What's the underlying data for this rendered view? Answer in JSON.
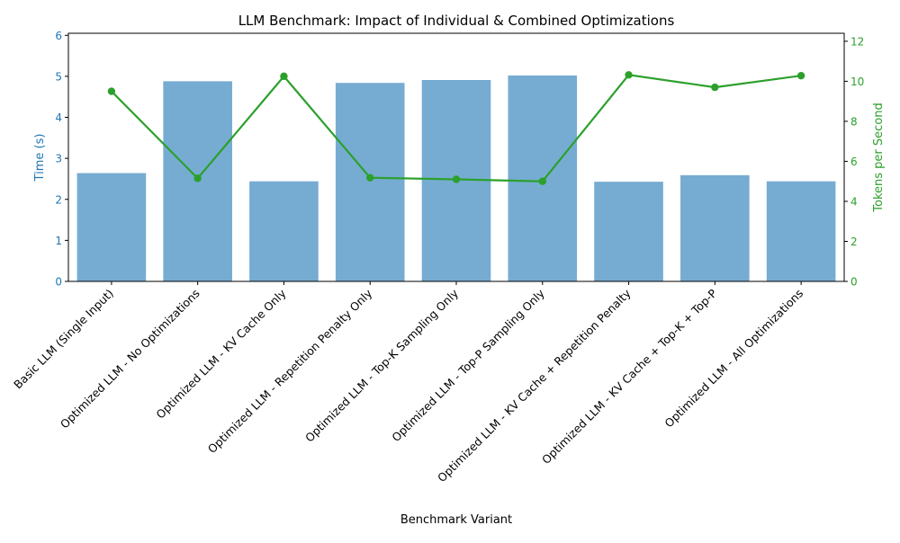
{
  "chart_data": {
    "type": "bar",
    "title": "LLM Benchmark: Impact of Individual & Combined Optimizations",
    "xlabel": "Benchmark Variant",
    "ylabel_left": "Time (s)",
    "ylabel_right": "Tokens per Second",
    "categories": [
      "Basic LLM (Single Input)",
      "Optimized LLM - No Optimizations",
      "Optimized LLM - KV Cache Only",
      "Optimized LLM - Repetition Penalty Only",
      "Optimized LLM - Top-K Sampling Only",
      "Optimized LLM - Top-P Sampling Only",
      "Optimized LLM - KV Cache + Repetition Penalty",
      "Optimized LLM - KV Cache + Top-K + Top-P",
      "Optimized LLM - All Optimizations"
    ],
    "series": [
      {
        "type": "bar",
        "axis": "left",
        "color": "#76acd2",
        "values": [
          2.64,
          4.88,
          2.44,
          4.84,
          4.91,
          5.02,
          2.43,
          2.59,
          2.44
        ]
      },
      {
        "type": "line",
        "axis": "right",
        "color": "#2ca02c",
        "values": [
          9.5,
          5.15,
          10.25,
          5.18,
          5.1,
          5.0,
          10.32,
          9.7,
          10.28
        ]
      }
    ],
    "ylim_left": [
      0,
      6.05
    ],
    "ylim_right": [
      0,
      12.4
    ],
    "yticks_left": [
      0,
      1,
      2,
      3,
      4,
      5,
      6
    ],
    "yticks_right": [
      0,
      2,
      4,
      6,
      8,
      10,
      12
    ],
    "left_axis_color": "#1f77b4",
    "right_axis_color": "#2ca02c",
    "grid": false
  }
}
